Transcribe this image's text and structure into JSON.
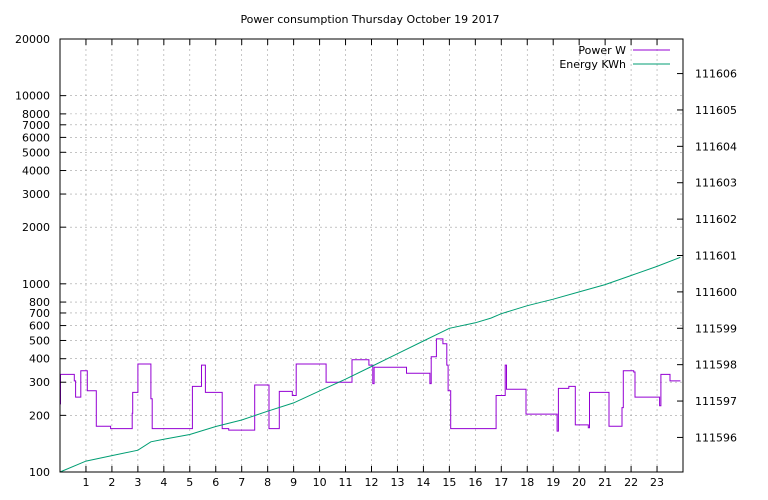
{
  "chart_data": {
    "type": "line",
    "title": "Power consumption Thursday October 19 2017",
    "xlabel": "",
    "ylabel": "",
    "grid": true,
    "legend_position": "top-right",
    "x_axis": {
      "range": [
        0,
        24
      ],
      "ticks": [
        1,
        2,
        3,
        4,
        5,
        6,
        7,
        8,
        9,
        10,
        11,
        12,
        13,
        14,
        15,
        16,
        17,
        18,
        19,
        20,
        21,
        22,
        23
      ],
      "tick_labels": [
        "1",
        "2",
        "3",
        "4",
        "5",
        "6",
        "7",
        "8",
        "9",
        "10",
        "11",
        "12",
        "13",
        "14",
        "15",
        "16",
        "17",
        "18",
        "19",
        "20",
        "21",
        "22",
        "23"
      ]
    },
    "y_axis_left": {
      "scale": "log",
      "range": [
        100,
        20000
      ],
      "ticks": [
        100,
        200,
        300,
        400,
        500,
        600,
        700,
        800,
        1000,
        2000,
        3000,
        4000,
        5000,
        6000,
        7000,
        8000,
        10000,
        20000
      ],
      "tick_labels": [
        "100",
        "200",
        "300",
        "400",
        "500",
        "600",
        "700",
        "800",
        "1000",
        "2000",
        "3000",
        "4000",
        "5000",
        "6000",
        "7000",
        "8000",
        "10000",
        "20000"
      ]
    },
    "y_axis_right": {
      "scale": "linear",
      "range": [
        111595.05,
        111606.95
      ],
      "ticks": [
        111596,
        111597,
        111598,
        111599,
        111600,
        111601,
        111602,
        111603,
        111604,
        111605,
        111606
      ],
      "tick_labels": [
        "111596",
        "111597",
        "111598",
        "111599",
        "111600",
        "111601",
        "111602",
        "111603",
        "111604",
        "111605",
        "111606"
      ]
    },
    "series": [
      {
        "name": "Power W",
        "color": "#9400d3",
        "axis": "left",
        "step": true,
        "points": [
          [
            0.0,
            230
          ],
          [
            0.02,
            330
          ],
          [
            0.5,
            330
          ],
          [
            0.55,
            305
          ],
          [
            0.6,
            250
          ],
          [
            0.75,
            250
          ],
          [
            0.8,
            345
          ],
          [
            1.0,
            345
          ],
          [
            1.05,
            270
          ],
          [
            1.35,
            270
          ],
          [
            1.4,
            175
          ],
          [
            1.9,
            175
          ],
          [
            1.95,
            170
          ],
          [
            2.75,
            170
          ],
          [
            2.78,
            205
          ],
          [
            2.8,
            265
          ],
          [
            2.95,
            265
          ],
          [
            3.0,
            375
          ],
          [
            3.45,
            375
          ],
          [
            3.5,
            245
          ],
          [
            3.55,
            170
          ],
          [
            4.0,
            170
          ],
          [
            5.0,
            170
          ],
          [
            5.1,
            285
          ],
          [
            5.4,
            285
          ],
          [
            5.45,
            370
          ],
          [
            5.55,
            370
          ],
          [
            5.6,
            265
          ],
          [
            6.2,
            265
          ],
          [
            6.25,
            170
          ],
          [
            6.5,
            167
          ],
          [
            7.45,
            167
          ],
          [
            7.5,
            290
          ],
          [
            8.0,
            290
          ],
          [
            8.05,
            170
          ],
          [
            8.4,
            170
          ],
          [
            8.45,
            268
          ],
          [
            8.9,
            268
          ],
          [
            8.95,
            255
          ],
          [
            9.1,
            375
          ],
          [
            10.2,
            375
          ],
          [
            10.25,
            300
          ],
          [
            11.2,
            300
          ],
          [
            11.25,
            395
          ],
          [
            11.85,
            395
          ],
          [
            11.9,
            370
          ],
          [
            12.05,
            295
          ],
          [
            12.1,
            360
          ],
          [
            13.3,
            360
          ],
          [
            13.35,
            335
          ],
          [
            14.2,
            335
          ],
          [
            14.25,
            295
          ],
          [
            14.3,
            410
          ],
          [
            14.45,
            410
          ],
          [
            14.5,
            510
          ],
          [
            14.7,
            510
          ],
          [
            14.75,
            480
          ],
          [
            14.85,
            480
          ],
          [
            14.9,
            370
          ],
          [
            14.95,
            270
          ],
          [
            15.05,
            170
          ],
          [
            16.0,
            170
          ],
          [
            16.75,
            170
          ],
          [
            16.8,
            255
          ],
          [
            17.1,
            255
          ],
          [
            17.15,
            370
          ],
          [
            17.2,
            275
          ],
          [
            17.9,
            275
          ],
          [
            17.95,
            203
          ],
          [
            18.7,
            203
          ],
          [
            19.1,
            203
          ],
          [
            19.15,
            165
          ],
          [
            19.2,
            278
          ],
          [
            19.5,
            278
          ],
          [
            19.6,
            285
          ],
          [
            19.8,
            285
          ],
          [
            19.85,
            178
          ],
          [
            20.3,
            178
          ],
          [
            20.35,
            172
          ],
          [
            20.4,
            265
          ],
          [
            21.1,
            265
          ],
          [
            21.15,
            175
          ],
          [
            21.6,
            175
          ],
          [
            21.65,
            220
          ],
          [
            21.7,
            345
          ],
          [
            22.1,
            340
          ],
          [
            22.15,
            250
          ],
          [
            22.4,
            250
          ],
          [
            23.05,
            250
          ],
          [
            23.1,
            225
          ],
          [
            23.15,
            330
          ],
          [
            23.45,
            330
          ],
          [
            23.5,
            305
          ],
          [
            23.9,
            305
          ]
        ]
      },
      {
        "name": "Energy KWh",
        "color": "#009e73",
        "axis": "right",
        "step": false,
        "points": [
          [
            0.0,
            111595.05
          ],
          [
            1.0,
            111595.35
          ],
          [
            2.0,
            111595.5
          ],
          [
            3.0,
            111595.65
          ],
          [
            3.5,
            111595.88
          ],
          [
            4.0,
            111595.95
          ],
          [
            5.0,
            111596.08
          ],
          [
            6.0,
            111596.3
          ],
          [
            7.0,
            111596.48
          ],
          [
            8.0,
            111596.72
          ],
          [
            9.0,
            111596.95
          ],
          [
            10.0,
            111597.28
          ],
          [
            11.0,
            111597.6
          ],
          [
            12.0,
            111597.95
          ],
          [
            13.0,
            111598.3
          ],
          [
            14.0,
            111598.65
          ],
          [
            15.0,
            111599.0
          ],
          [
            16.0,
            111599.15
          ],
          [
            16.6,
            111599.28
          ],
          [
            17.0,
            111599.4
          ],
          [
            18.0,
            111599.62
          ],
          [
            19.0,
            111599.8
          ],
          [
            20.0,
            111600.0
          ],
          [
            21.0,
            111600.2
          ],
          [
            22.0,
            111600.45
          ],
          [
            23.0,
            111600.7
          ],
          [
            23.9,
            111600.95
          ]
        ]
      }
    ]
  }
}
